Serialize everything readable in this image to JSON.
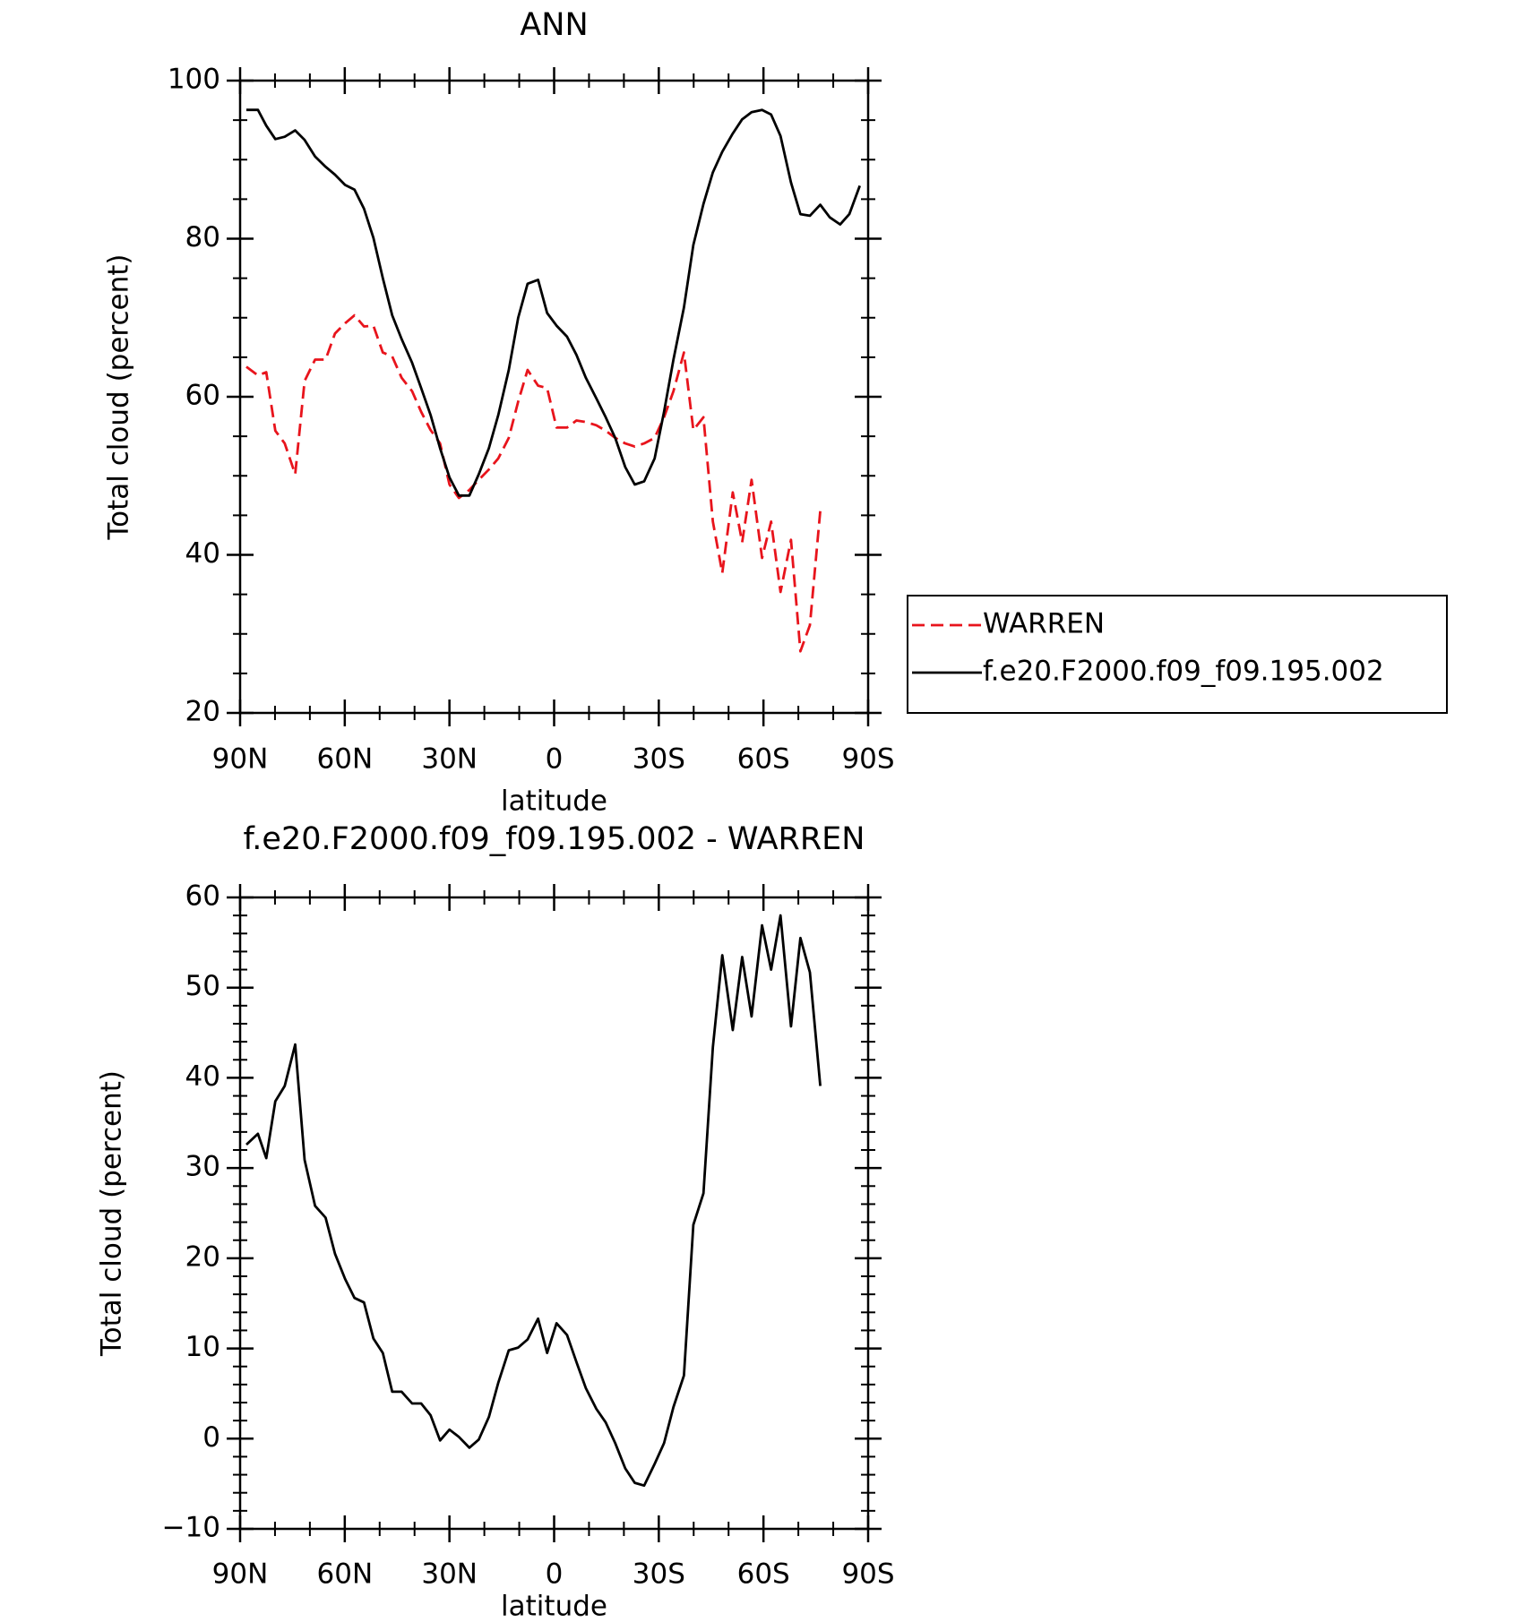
{
  "chart_data": [
    {
      "type": "line",
      "title": "ANN",
      "xlabel": "latitude",
      "ylabel": "Total cloud (percent)",
      "xlim": [
        90,
        -90
      ],
      "xticks": [
        {
          "value": 90,
          "label": "90N"
        },
        {
          "value": 60,
          "label": "60N"
        },
        {
          "value": 30,
          "label": "30N"
        },
        0,
        {
          "value": -30,
          "label": "30S"
        },
        {
          "value": -60,
          "label": "60S"
        },
        {
          "value": -90,
          "label": "90S"
        }
      ],
      "ylim": [
        20,
        100
      ],
      "yticks": [
        20,
        40,
        60,
        80,
        100
      ],
      "legend": "right",
      "x": [
        88.2,
        84.9,
        82.5,
        79.9,
        77.2,
        74.2,
        71.5,
        68.5,
        65.5,
        62.8,
        59.9,
        57.2,
        54.5,
        51.8,
        49.1,
        46.4,
        43.7,
        40.7,
        38.1,
        35.4,
        32.7,
        30.0,
        27.3,
        24.3,
        21.6,
        18.7,
        16.0,
        13.0,
        10.3,
        7.6,
        4.6,
        2.0,
        -0.7,
        -3.7,
        -6.4,
        -9.1,
        -12.1,
        -14.8,
        -17.5,
        -20.4,
        -23.1,
        -25.8,
        -28.8,
        -31.5,
        -34.2,
        -37.2,
        -39.9,
        -42.8,
        -45.5,
        -48.2,
        -51.2,
        -53.9,
        -56.6,
        -59.6,
        -62.2,
        -64.9,
        -67.9,
        -70.6,
        -73.3,
        -76.3,
        -79.0,
        -82.0,
        -84.6,
        -87.6
      ],
      "series": [
        {
          "name": "WARREN",
          "color": "#e8141c",
          "style": "dashed",
          "values": [
            63.8,
            62.7,
            63.1,
            55.7,
            54.1,
            50.2,
            62.0,
            64.7,
            64.7,
            68.0,
            69.3,
            70.3,
            68.9,
            69.0,
            65.6,
            65.1,
            62.4,
            60.7,
            58.1,
            55.8,
            54.1,
            48.9,
            47.2,
            48.2,
            49.5,
            50.8,
            52.2,
            54.8,
            59.4,
            63.4,
            61.4,
            61.1,
            56.1,
            56.1,
            57.0,
            56.8,
            56.4,
            55.7,
            54.8,
            54.1,
            53.7,
            54.1,
            54.8,
            57.4,
            60.7,
            65.6,
            55.8,
            57.4,
            44.2,
            37.7,
            47.9,
            41.6,
            49.5,
            39.6,
            44.2,
            35.3,
            41.9,
            27.8,
            31.1,
            45.6,
            null,
            null,
            null,
            null
          ]
        },
        {
          "name": "f.e20.F2000.f09_f09.195.002",
          "color": "#000000",
          "style": "solid",
          "values": [
            96.3,
            96.3,
            94.3,
            92.6,
            92.9,
            93.7,
            92.5,
            90.4,
            89.1,
            88.1,
            86.8,
            86.2,
            83.8,
            80.1,
            75.0,
            70.3,
            67.3,
            64.3,
            61.1,
            57.7,
            53.5,
            49.8,
            47.5,
            47.5,
            50.2,
            53.5,
            57.7,
            63.4,
            70.0,
            74.3,
            74.8,
            70.6,
            69.0,
            67.6,
            65.3,
            62.4,
            59.8,
            57.4,
            54.8,
            51.1,
            48.9,
            49.3,
            52.2,
            58.1,
            64.7,
            71.3,
            79.2,
            84.4,
            88.4,
            91.0,
            93.3,
            95.1,
            96.0,
            96.3,
            95.7,
            93.0,
            87.1,
            83.1,
            82.9,
            84.3,
            82.7,
            81.8,
            83.1,
            86.7
          ]
        }
      ]
    },
    {
      "type": "line",
      "title": "f.e20.F2000.f09_f09.195.002 - WARREN",
      "xlabel": "latitude",
      "ylabel": "Total cloud (percent)",
      "xlim": [
        90,
        -90
      ],
      "xticks": [
        {
          "value": 90,
          "label": "90N"
        },
        {
          "value": 60,
          "label": "60N"
        },
        {
          "value": 30,
          "label": "30N"
        },
        0,
        {
          "value": -30,
          "label": "30S"
        },
        {
          "value": -60,
          "label": "60S"
        },
        {
          "value": -90,
          "label": "90S"
        }
      ],
      "ylim": [
        -10,
        60
      ],
      "yticks": [
        {
          "value": -10,
          "label": "−10"
        },
        0,
        10,
        20,
        30,
        40,
        50,
        60
      ],
      "x": [
        88.2,
        84.9,
        82.5,
        79.9,
        77.2,
        74.2,
        71.5,
        68.5,
        65.5,
        62.8,
        59.9,
        57.2,
        54.5,
        51.8,
        49.1,
        46.4,
        43.7,
        40.7,
        38.1,
        35.4,
        32.7,
        30.0,
        27.3,
        24.3,
        21.6,
        18.7,
        16.0,
        13.0,
        10.3,
        7.6,
        4.6,
        2.0,
        -0.7,
        -3.7,
        -6.4,
        -9.1,
        -12.1,
        -14.8,
        -17.5,
        -20.4,
        -23.1,
        -25.8,
        -28.8,
        -31.5,
        -34.2,
        -37.2,
        -39.9,
        -42.8,
        -45.5,
        -48.2,
        -51.2,
        -53.9,
        -56.6,
        -59.6,
        -62.2,
        -64.9,
        -67.9,
        -70.6,
        -73.3,
        -76.3
      ],
      "series": [
        {
          "color": "#000000",
          "style": "solid",
          "values": [
            32.6,
            33.8,
            31.1,
            37.4,
            39.1,
            43.7,
            30.9,
            25.8,
            24.5,
            20.5,
            17.7,
            15.6,
            15.1,
            11.1,
            9.5,
            5.2,
            5.2,
            3.9,
            3.9,
            2.6,
            -0.2,
            1.0,
            0.2,
            -1.0,
            -0.1,
            2.4,
            6.2,
            9.8,
            10.1,
            11.0,
            13.3,
            9.5,
            12.8,
            11.5,
            8.5,
            5.6,
            3.3,
            1.8,
            -0.5,
            -3.3,
            -4.9,
            -5.2,
            -2.8,
            -0.5,
            3.5,
            7.0,
            23.7,
            27.2,
            43.4,
            53.6,
            45.3,
            53.4,
            46.8,
            56.9,
            52.0,
            58.0,
            45.7,
            55.5,
            51.7,
            39.1
          ]
        }
      ]
    }
  ]
}
